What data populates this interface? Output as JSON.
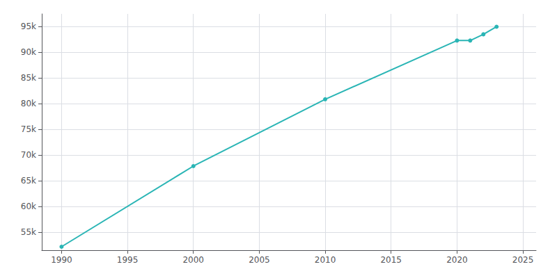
{
  "chart_data": {
    "type": "line",
    "x": [
      1990,
      2000,
      2010,
      2020,
      2021,
      2022,
      2023
    ],
    "values": [
      52179,
      67873,
      80885,
      92314,
      92314,
      93522,
      95000
    ],
    "color": "#2AB5B5",
    "marker": "circle",
    "xlim": [
      1988.5,
      2026
    ],
    "ylim": [
      51500,
      97500
    ],
    "xticks": [
      1990,
      1995,
      2000,
      2005,
      2010,
      2015,
      2020,
      2025
    ],
    "yticks": [
      {
        "value": 55000,
        "label": "55k"
      },
      {
        "value": 60000,
        "label": "60k"
      },
      {
        "value": 65000,
        "label": "65k"
      },
      {
        "value": 70000,
        "label": "70k"
      },
      {
        "value": 75000,
        "label": "75k"
      },
      {
        "value": 80000,
        "label": "80k"
      },
      {
        "value": 85000,
        "label": "85k"
      },
      {
        "value": 90000,
        "label": "90k"
      },
      {
        "value": 95000,
        "label": "95k"
      }
    ],
    "grid": true
  }
}
